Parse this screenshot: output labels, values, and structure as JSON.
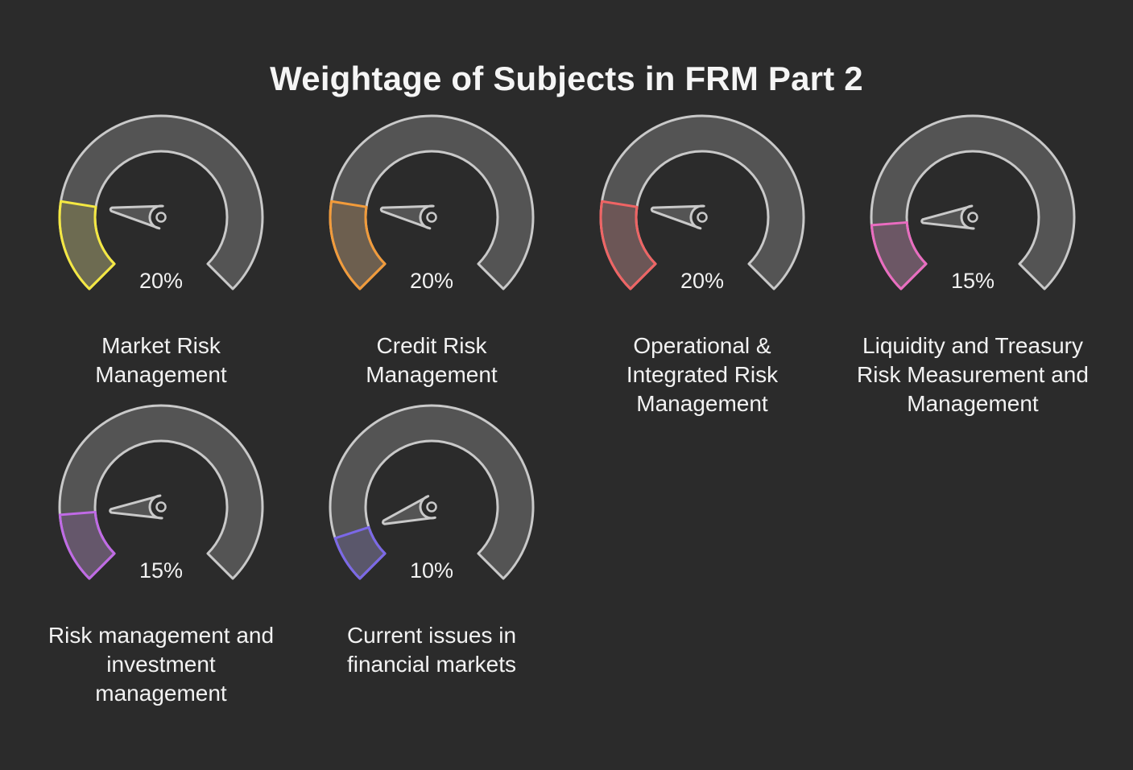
{
  "chart_data": {
    "type": "gauge",
    "title": "Weightage of Subjects in FRM Part 2",
    "categories": [
      "Market Risk Management",
      "Credit Risk Management",
      "Operational & Integrated Risk Management",
      "Liquidity and Treasury Risk Measurement and Management",
      "Risk management and investment management",
      "Current issues in financial markets"
    ],
    "values": [
      20,
      20,
      20,
      15,
      15,
      10
    ],
    "value_labels": [
      "20%",
      "20%",
      "20%",
      "15%",
      "15%",
      "10%"
    ],
    "colors": [
      "#f4e842",
      "#f29b3a",
      "#ef6464",
      "#ea6cc0",
      "#c06ae6",
      "#7b68e8"
    ],
    "unit": "%"
  }
}
